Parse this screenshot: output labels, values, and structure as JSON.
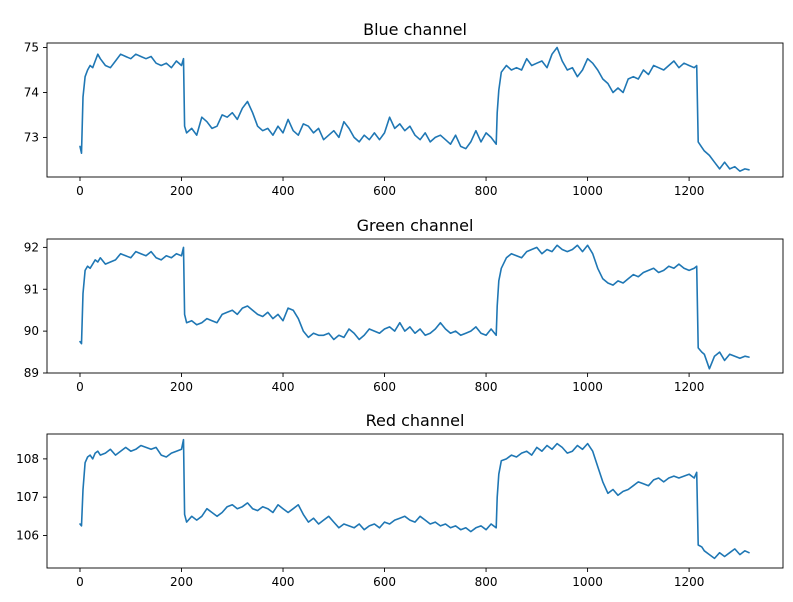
{
  "figure": {
    "background": "#ffffff",
    "line_color": "#1f77b4"
  },
  "chart_data": [
    {
      "type": "line",
      "title": "Blue channel",
      "xlabel": "",
      "ylabel": "",
      "xlim": [
        -65,
        1385
      ],
      "ylim": [
        72.12,
        75.1
      ],
      "xticks": [
        0,
        200,
        400,
        600,
        800,
        1000,
        1200
      ],
      "yticks": [
        73,
        74,
        75
      ],
      "grid": false,
      "series": [
        {
          "x": [
            0,
            3,
            6,
            10,
            15,
            20,
            25,
            30,
            35,
            40,
            50,
            60,
            70,
            80,
            90,
            100,
            110,
            120,
            130,
            140,
            150,
            160,
            170,
            180,
            190,
            200,
            204,
            206,
            210,
            220,
            230,
            240,
            250,
            260,
            270,
            280,
            290,
            300,
            310,
            320,
            330,
            340,
            350,
            360,
            370,
            380,
            390,
            400,
            410,
            420,
            430,
            440,
            450,
            460,
            470,
            480,
            490,
            500,
            510,
            520,
            530,
            540,
            550,
            560,
            570,
            580,
            590,
            600,
            610,
            620,
            630,
            640,
            650,
            660,
            670,
            680,
            690,
            700,
            710,
            720,
            730,
            740,
            750,
            760,
            770,
            780,
            790,
            800,
            810,
            820,
            822,
            825,
            830,
            840,
            850,
            860,
            870,
            880,
            890,
            900,
            910,
            920,
            930,
            940,
            950,
            960,
            970,
            980,
            990,
            1000,
            1010,
            1020,
            1030,
            1040,
            1050,
            1060,
            1070,
            1080,
            1090,
            1100,
            1110,
            1120,
            1130,
            1140,
            1150,
            1160,
            1170,
            1180,
            1190,
            1200,
            1210,
            1215,
            1218,
            1225,
            1230,
            1240,
            1250,
            1260,
            1270,
            1280,
            1290,
            1300,
            1310,
            1318
          ],
          "y": [
            72.8,
            72.65,
            73.9,
            74.35,
            74.5,
            74.6,
            74.55,
            74.7,
            74.85,
            74.75,
            74.6,
            74.55,
            74.7,
            74.85,
            74.8,
            74.75,
            74.85,
            74.8,
            74.75,
            74.8,
            74.65,
            74.6,
            74.65,
            74.55,
            74.7,
            74.6,
            74.75,
            73.25,
            73.1,
            73.2,
            73.05,
            73.45,
            73.35,
            73.2,
            73.25,
            73.5,
            73.45,
            73.55,
            73.4,
            73.65,
            73.8,
            73.55,
            73.25,
            73.15,
            73.2,
            73.05,
            73.25,
            73.1,
            73.4,
            73.15,
            73.05,
            73.3,
            73.25,
            73.1,
            73.2,
            72.95,
            73.05,
            73.15,
            73.0,
            73.35,
            73.2,
            73.0,
            72.9,
            73.05,
            72.95,
            73.1,
            72.95,
            73.1,
            73.45,
            73.2,
            73.3,
            73.15,
            73.25,
            73.05,
            72.95,
            73.1,
            72.9,
            73.0,
            73.05,
            72.95,
            72.85,
            73.05,
            72.8,
            72.75,
            72.9,
            73.15,
            72.9,
            73.1,
            73.0,
            72.85,
            73.55,
            74.05,
            74.45,
            74.6,
            74.5,
            74.55,
            74.5,
            74.75,
            74.6,
            74.65,
            74.7,
            74.55,
            74.85,
            75.0,
            74.7,
            74.5,
            74.55,
            74.35,
            74.5,
            74.75,
            74.65,
            74.5,
            74.3,
            74.2,
            74.0,
            74.1,
            74.0,
            74.3,
            74.35,
            74.3,
            74.5,
            74.4,
            74.6,
            74.55,
            74.5,
            74.6,
            74.7,
            74.55,
            74.65,
            74.6,
            74.55,
            74.6,
            72.9,
            72.78,
            72.7,
            72.6,
            72.45,
            72.3,
            72.45,
            72.3,
            72.35,
            72.25,
            72.3,
            72.28
          ]
        }
      ]
    },
    {
      "type": "line",
      "title": "Green channel",
      "xlabel": "",
      "ylabel": "",
      "xlim": [
        -65,
        1385
      ],
      "ylim": [
        89.0,
        92.2
      ],
      "xticks": [
        0,
        200,
        400,
        600,
        800,
        1000,
        1200
      ],
      "yticks": [
        89,
        90,
        91,
        92
      ],
      "grid": false,
      "series": [
        {
          "x": [
            0,
            3,
            6,
            10,
            15,
            20,
            25,
            30,
            35,
            40,
            50,
            60,
            70,
            80,
            90,
            100,
            110,
            120,
            130,
            140,
            150,
            160,
            170,
            180,
            190,
            200,
            204,
            206,
            210,
            220,
            230,
            240,
            250,
            260,
            270,
            280,
            290,
            300,
            310,
            320,
            330,
            340,
            350,
            360,
            370,
            380,
            390,
            400,
            410,
            420,
            430,
            440,
            450,
            460,
            470,
            480,
            490,
            500,
            510,
            520,
            530,
            540,
            550,
            560,
            570,
            580,
            590,
            600,
            610,
            620,
            630,
            640,
            650,
            660,
            670,
            680,
            690,
            700,
            710,
            720,
            730,
            740,
            750,
            760,
            770,
            780,
            790,
            800,
            810,
            820,
            822,
            825,
            830,
            840,
            850,
            860,
            870,
            880,
            890,
            900,
            910,
            920,
            930,
            940,
            950,
            960,
            970,
            980,
            990,
            1000,
            1010,
            1020,
            1030,
            1040,
            1050,
            1060,
            1070,
            1080,
            1090,
            1100,
            1110,
            1120,
            1130,
            1140,
            1150,
            1160,
            1170,
            1180,
            1190,
            1200,
            1210,
            1215,
            1218,
            1225,
            1230,
            1240,
            1250,
            1260,
            1270,
            1280,
            1290,
            1300,
            1310,
            1318
          ],
          "y": [
            89.75,
            89.7,
            90.9,
            91.45,
            91.55,
            91.5,
            91.6,
            91.7,
            91.65,
            91.75,
            91.6,
            91.65,
            91.7,
            91.85,
            91.8,
            91.75,
            91.9,
            91.85,
            91.8,
            91.9,
            91.75,
            91.7,
            91.8,
            91.75,
            91.85,
            91.8,
            92.0,
            90.4,
            90.2,
            90.25,
            90.15,
            90.2,
            90.3,
            90.25,
            90.2,
            90.4,
            90.45,
            90.5,
            90.4,
            90.55,
            90.6,
            90.5,
            90.4,
            90.35,
            90.45,
            90.3,
            90.4,
            90.25,
            90.55,
            90.5,
            90.3,
            90.0,
            89.85,
            89.95,
            89.9,
            89.9,
            89.95,
            89.8,
            89.9,
            89.85,
            90.05,
            89.95,
            89.8,
            89.9,
            90.05,
            90.0,
            89.95,
            90.05,
            90.1,
            90.0,
            90.2,
            90.0,
            90.1,
            89.95,
            90.05,
            89.9,
            89.95,
            90.05,
            90.2,
            90.05,
            89.95,
            90.0,
            89.9,
            89.95,
            90.0,
            90.1,
            89.95,
            89.9,
            90.05,
            89.9,
            90.6,
            91.2,
            91.5,
            91.75,
            91.85,
            91.8,
            91.75,
            91.9,
            91.95,
            92.0,
            91.85,
            91.95,
            91.9,
            92.05,
            91.95,
            91.9,
            91.95,
            92.05,
            91.9,
            92.05,
            91.85,
            91.5,
            91.25,
            91.15,
            91.1,
            91.2,
            91.15,
            91.25,
            91.35,
            91.3,
            91.4,
            91.45,
            91.5,
            91.4,
            91.45,
            91.55,
            91.5,
            91.6,
            91.5,
            91.45,
            91.5,
            91.55,
            89.6,
            89.5,
            89.45,
            89.1,
            89.4,
            89.5,
            89.3,
            89.45,
            89.4,
            89.35,
            89.4,
            89.38
          ]
        }
      ]
    },
    {
      "type": "line",
      "title": "Red channel",
      "xlabel": "",
      "ylabel": "",
      "xlim": [
        -65,
        1385
      ],
      "ylim": [
        105.15,
        108.65
      ],
      "xticks": [
        0,
        200,
        400,
        600,
        800,
        1000,
        1200
      ],
      "yticks": [
        106,
        107,
        108
      ],
      "grid": false,
      "series": [
        {
          "x": [
            0,
            3,
            6,
            10,
            15,
            20,
            25,
            30,
            35,
            40,
            50,
            60,
            70,
            80,
            90,
            100,
            110,
            120,
            130,
            140,
            150,
            160,
            170,
            180,
            190,
            200,
            204,
            206,
            210,
            220,
            230,
            240,
            250,
            260,
            270,
            280,
            290,
            300,
            310,
            320,
            330,
            340,
            350,
            360,
            370,
            380,
            390,
            400,
            410,
            420,
            430,
            440,
            450,
            460,
            470,
            480,
            490,
            500,
            510,
            520,
            530,
            540,
            550,
            560,
            570,
            580,
            590,
            600,
            610,
            620,
            630,
            640,
            650,
            660,
            670,
            680,
            690,
            700,
            710,
            720,
            730,
            740,
            750,
            760,
            770,
            780,
            790,
            800,
            810,
            820,
            822,
            825,
            830,
            840,
            850,
            860,
            870,
            880,
            890,
            900,
            910,
            920,
            930,
            940,
            950,
            960,
            970,
            980,
            990,
            1000,
            1010,
            1020,
            1030,
            1040,
            1050,
            1060,
            1070,
            1080,
            1090,
            1100,
            1110,
            1120,
            1130,
            1140,
            1150,
            1160,
            1170,
            1180,
            1190,
            1200,
            1210,
            1215,
            1218,
            1225,
            1230,
            1240,
            1250,
            1260,
            1270,
            1280,
            1290,
            1300,
            1310,
            1318
          ],
          "y": [
            106.3,
            106.25,
            107.2,
            107.9,
            108.05,
            108.1,
            108.0,
            108.15,
            108.2,
            108.1,
            108.15,
            108.25,
            108.1,
            108.2,
            108.3,
            108.2,
            108.25,
            108.35,
            108.3,
            108.25,
            108.3,
            108.1,
            108.05,
            108.15,
            108.2,
            108.25,
            108.5,
            106.55,
            106.35,
            106.5,
            106.4,
            106.5,
            106.7,
            106.6,
            106.5,
            106.6,
            106.75,
            106.8,
            106.7,
            106.75,
            106.85,
            106.7,
            106.65,
            106.75,
            106.7,
            106.6,
            106.8,
            106.7,
            106.6,
            106.7,
            106.8,
            106.55,
            106.35,
            106.45,
            106.3,
            106.4,
            106.5,
            106.35,
            106.2,
            106.3,
            106.25,
            106.2,
            106.3,
            106.15,
            106.25,
            106.3,
            106.2,
            106.35,
            106.3,
            106.4,
            106.45,
            106.5,
            106.4,
            106.35,
            106.5,
            106.4,
            106.3,
            106.35,
            106.25,
            106.3,
            106.2,
            106.25,
            106.15,
            106.2,
            106.1,
            106.2,
            106.25,
            106.15,
            106.3,
            106.2,
            107.0,
            107.6,
            107.95,
            108.0,
            108.1,
            108.05,
            108.15,
            108.2,
            108.1,
            108.3,
            108.2,
            108.35,
            108.25,
            108.4,
            108.3,
            108.15,
            108.2,
            108.35,
            108.25,
            108.4,
            108.2,
            107.8,
            107.4,
            107.1,
            107.2,
            107.05,
            107.15,
            107.2,
            107.3,
            107.4,
            107.35,
            107.3,
            107.45,
            107.5,
            107.4,
            107.5,
            107.55,
            107.5,
            107.55,
            107.6,
            107.5,
            107.65,
            105.75,
            105.7,
            105.6,
            105.5,
            105.4,
            105.55,
            105.45,
            105.55,
            105.65,
            105.5,
            105.6,
            105.55
          ]
        }
      ]
    }
  ]
}
